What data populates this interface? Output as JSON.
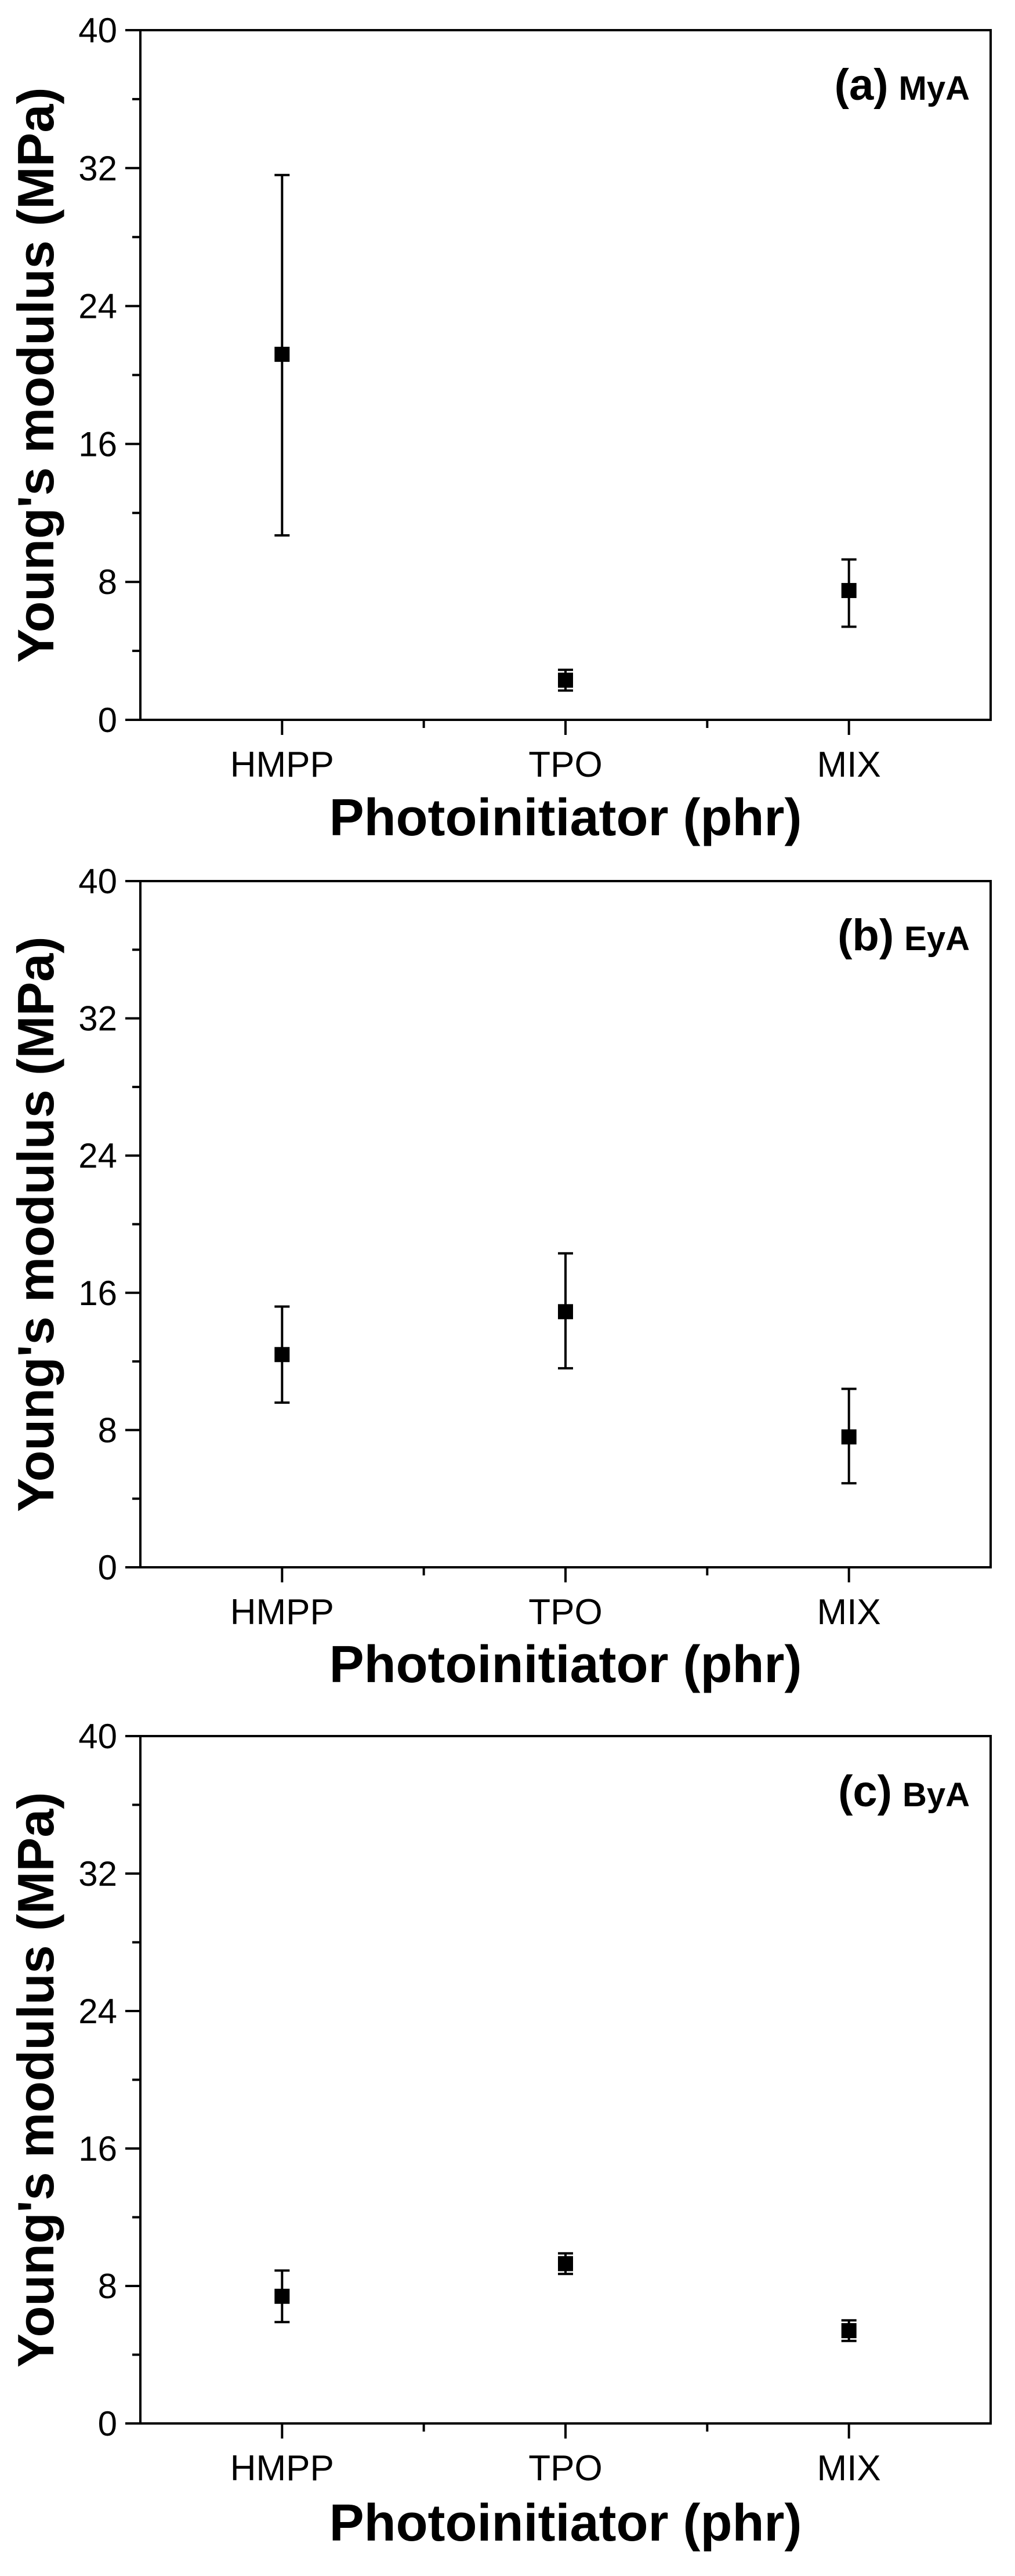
{
  "chart_data": [
    {
      "type": "scatter",
      "title": "(a)",
      "subtitle": "MyA",
      "xlabel": "Photoinitiator (phr)",
      "ylabel": "Young's modulus (MPa)",
      "categories": [
        "HMPP",
        "TPO",
        "MIX"
      ],
      "values": [
        21.2,
        2.3,
        7.5
      ],
      "error_low": [
        10.7,
        1.7,
        5.4
      ],
      "error_high": [
        31.6,
        2.9,
        9.3
      ],
      "ylim": [
        0,
        40
      ],
      "yticks": [
        "0",
        "8",
        "16",
        "24",
        "32",
        "40"
      ]
    },
    {
      "type": "scatter",
      "title": "(b)",
      "subtitle": "EyA",
      "xlabel": "Photoinitiator (phr)",
      "ylabel": "Young's modulus (MPa)",
      "categories": [
        "HMPP",
        "TPO",
        "MIX"
      ],
      "values": [
        12.4,
        14.9,
        7.6
      ],
      "error_low": [
        9.6,
        11.6,
        4.9
      ],
      "error_high": [
        15.2,
        18.3,
        10.4
      ],
      "ylim": [
        0,
        40
      ],
      "yticks": [
        "0",
        "8",
        "16",
        "24",
        "32",
        "40"
      ]
    },
    {
      "type": "scatter",
      "title": "(c)",
      "subtitle": "ByA",
      "xlabel": "Photoinitiator (phr)",
      "ylabel": "Young's modulus (MPa)",
      "categories": [
        "HMPP",
        "TPO",
        "MIX"
      ],
      "values": [
        7.4,
        9.3,
        5.4
      ],
      "error_low": [
        5.9,
        8.7,
        4.8
      ],
      "error_high": [
        8.9,
        9.9,
        6.0
      ],
      "ylim": [
        0,
        40
      ],
      "yticks": [
        "0",
        "8",
        "16",
        "24",
        "32",
        "40"
      ]
    }
  ]
}
